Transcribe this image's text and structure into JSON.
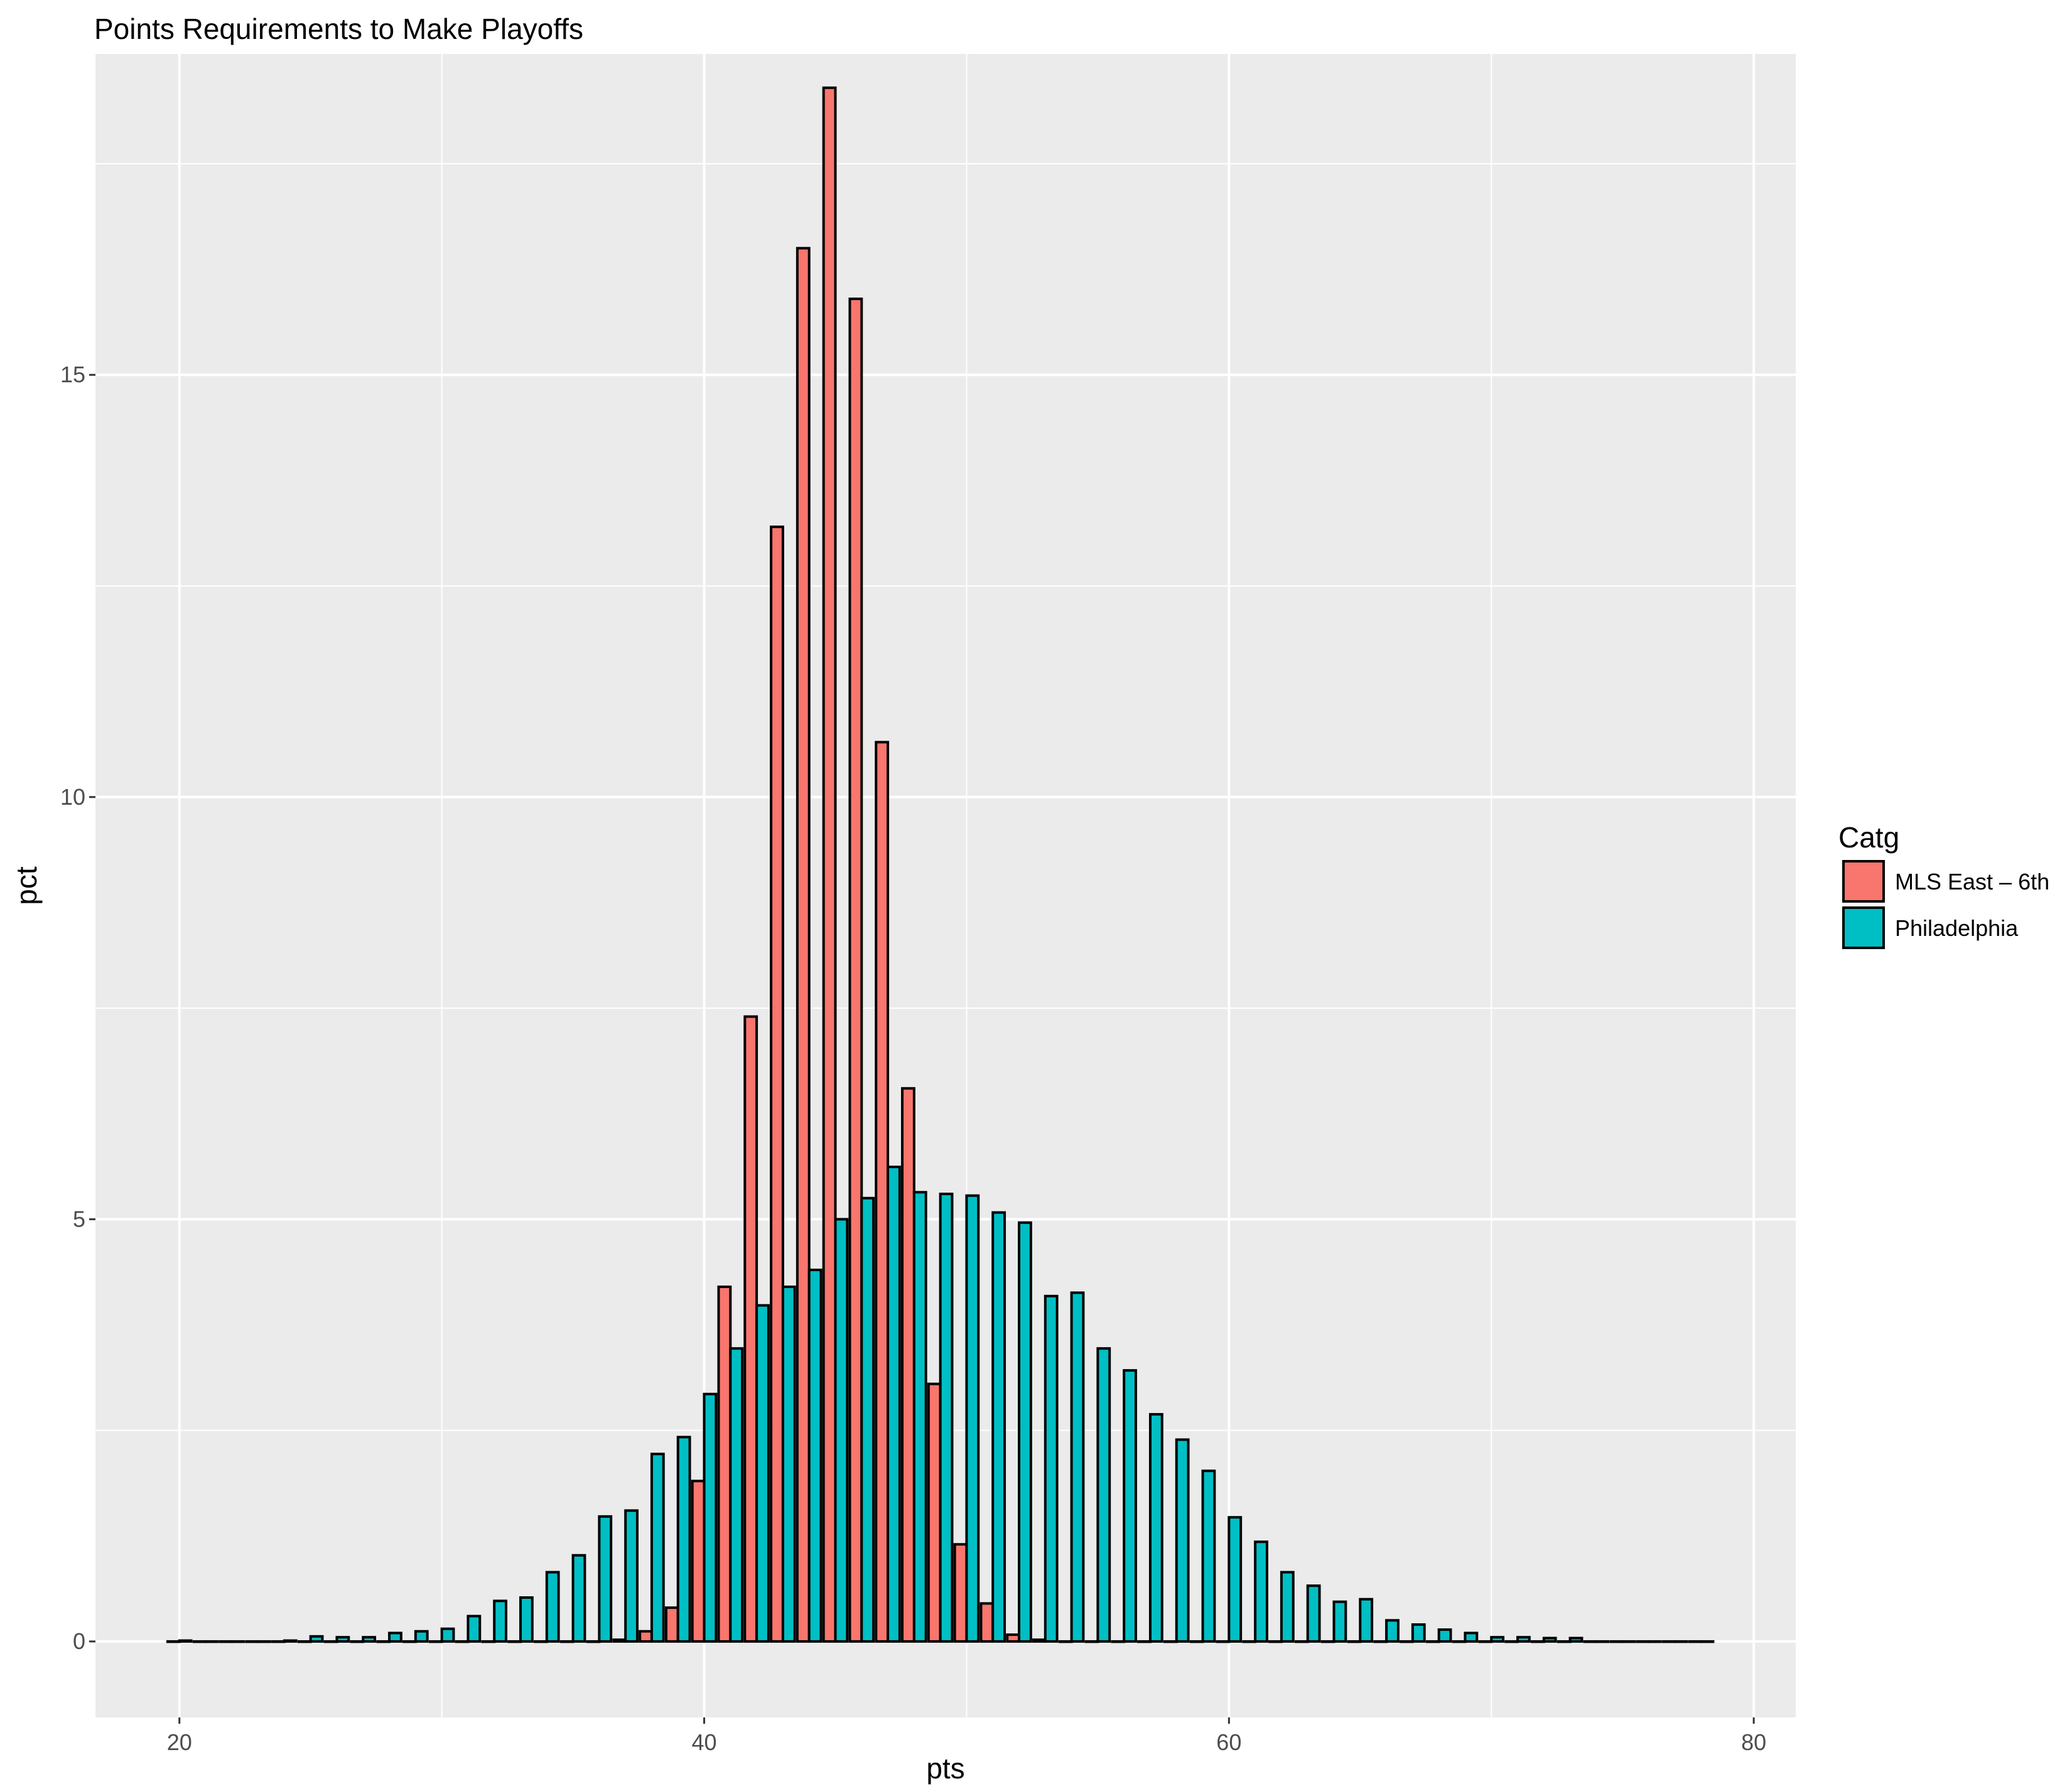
{
  "chart_data": {
    "type": "bar",
    "title": "Points Requirements to Make Playoffs",
    "xlabel": "pts",
    "ylabel": "pct",
    "xlim": [
      16.8,
      81.6
    ],
    "ylim": [
      -0.9,
      18.8
    ],
    "x_ticks": [
      20,
      40,
      60,
      80
    ],
    "y_ticks": [
      0,
      5,
      10,
      15
    ],
    "grid": true,
    "legend": {
      "title": "Catg",
      "position": "right"
    },
    "series": [
      {
        "name": "MLS East – 6th",
        "color": "#F8766D",
        "points": [
          [
            37,
            0.02
          ],
          [
            38,
            0.12
          ],
          [
            39,
            0.4
          ],
          [
            40,
            1.9
          ],
          [
            41,
            4.2
          ],
          [
            42,
            7.4
          ],
          [
            43,
            13.2
          ],
          [
            44,
            16.5
          ],
          [
            45,
            18.4
          ],
          [
            46,
            15.9
          ],
          [
            47,
            10.65
          ],
          [
            48,
            6.55
          ],
          [
            49,
            3.05
          ],
          [
            50,
            1.15
          ],
          [
            51,
            0.45
          ],
          [
            52,
            0.08
          ],
          [
            53,
            0.02
          ]
        ]
      },
      {
        "name": "Philadelphia",
        "color": "#00BFC4",
        "points": [
          [
            20,
            0.01
          ],
          [
            24,
            0.01
          ],
          [
            25,
            0.06
          ],
          [
            26,
            0.05
          ],
          [
            27,
            0.05
          ],
          [
            28,
            0.1
          ],
          [
            29,
            0.12
          ],
          [
            30,
            0.15
          ],
          [
            31,
            0.3
          ],
          [
            32,
            0.48
          ],
          [
            33,
            0.52
          ],
          [
            34,
            0.82
          ],
          [
            35,
            1.02
          ],
          [
            36,
            1.48
          ],
          [
            37,
            1.55
          ],
          [
            38,
            2.22
          ],
          [
            39,
            2.42
          ],
          [
            40,
            2.93
          ],
          [
            41,
            3.47
          ],
          [
            42,
            3.98
          ],
          [
            43,
            4.2
          ],
          [
            44,
            4.4
          ],
          [
            45,
            5.0
          ],
          [
            46,
            5.25
          ],
          [
            47,
            5.62
          ],
          [
            48,
            5.32
          ],
          [
            49,
            5.3
          ],
          [
            50,
            5.28
          ],
          [
            51,
            5.08
          ],
          [
            52,
            4.96
          ],
          [
            53,
            4.09
          ],
          [
            54,
            4.13
          ],
          [
            55,
            3.47
          ],
          [
            56,
            3.21
          ],
          [
            57,
            2.69
          ],
          [
            58,
            2.39
          ],
          [
            59,
            2.02
          ],
          [
            60,
            1.47
          ],
          [
            61,
            1.18
          ],
          [
            62,
            0.82
          ],
          [
            63,
            0.66
          ],
          [
            64,
            0.47
          ],
          [
            65,
            0.5
          ],
          [
            66,
            0.25
          ],
          [
            67,
            0.2
          ],
          [
            68,
            0.14
          ],
          [
            69,
            0.1
          ],
          [
            70,
            0.05
          ],
          [
            71,
            0.05
          ],
          [
            72,
            0.04
          ],
          [
            73,
            0.04
          ]
        ]
      }
    ],
    "x_range_bars": [
      20,
      78
    ]
  }
}
